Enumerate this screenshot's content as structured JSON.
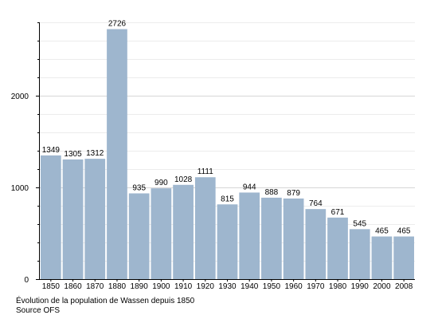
{
  "chart_data": {
    "type": "bar",
    "categories": [
      "1850",
      "1860",
      "1870",
      "1880",
      "1890",
      "1900",
      "1910",
      "1920",
      "1930",
      "1940",
      "1950",
      "1960",
      "1970",
      "1980",
      "1990",
      "2000",
      "2008"
    ],
    "values": [
      1349,
      1305,
      1312,
      2726,
      935,
      990,
      1028,
      1111,
      815,
      944,
      888,
      879,
      764,
      671,
      545,
      465,
      465
    ],
    "data_labels": [
      "1349",
      "1305",
      "1312",
      "2726",
      "935",
      "990",
      "1028",
      "1111",
      "815",
      "944",
      "888",
      "879",
      "764",
      "671",
      "545",
      "465",
      "465"
    ],
    "y_ticks": [
      0,
      1000,
      2000
    ],
    "y_tick_labels": [
      "0",
      "1000",
      "2000"
    ],
    "ylim": [
      0,
      2800
    ],
    "grid": true,
    "bar_color": "#9eb6ce",
    "grid_color": "#d6d6d6",
    "title": "",
    "xlabel": "",
    "ylabel": ""
  },
  "caption": {
    "line1": "Évolution de la population de Wassen depuis 1850",
    "line2": "Source OFS"
  }
}
